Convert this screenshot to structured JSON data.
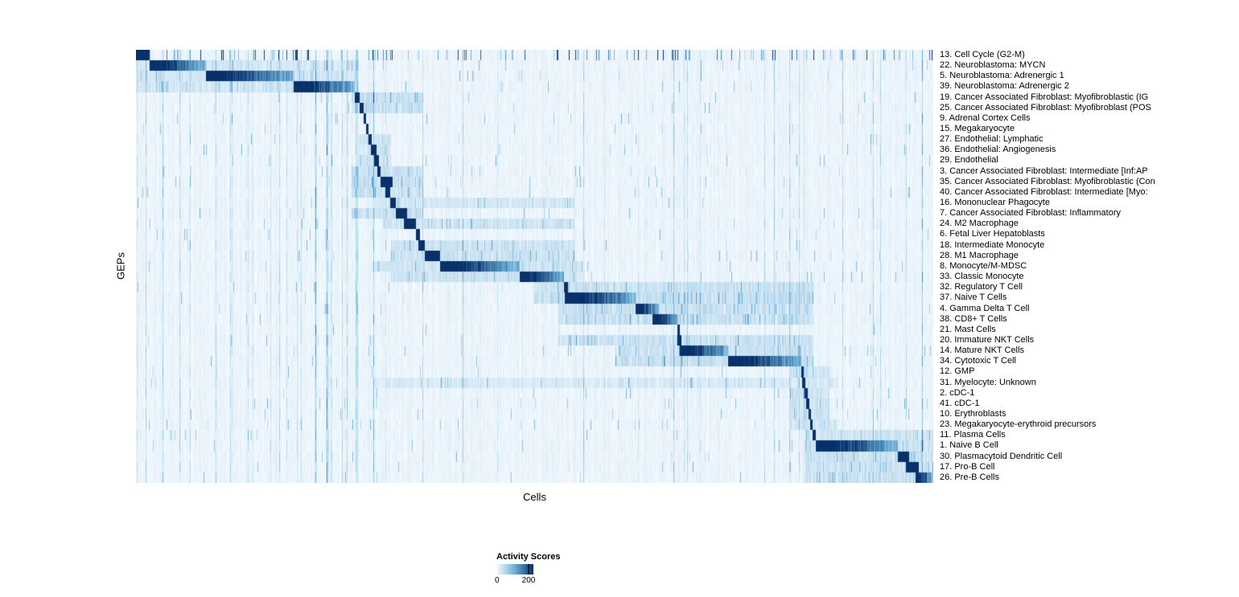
{
  "chart_data": {
    "type": "heatmap",
    "title": "",
    "xlabel": "Cells",
    "ylabel": "GEPs",
    "legend": {
      "title": "Activity Scores",
      "min_label": "0",
      "max_label": "200"
    },
    "colormap": {
      "name": "Blues",
      "min": 0,
      "max": 200,
      "stops": [
        "#f7fbff",
        "#6baed6",
        "#08306b"
      ]
    },
    "layout": {
      "n_rows": 41,
      "grid": false,
      "legend_position": "bottom-left",
      "row_labels_position": "right"
    },
    "rows": [
      {
        "label": "13. Cell Cycle (G2-M)",
        "segment": [
          0.0,
          0.017
        ],
        "haze": null,
        "scatter": true
      },
      {
        "label": "22. Neuroblastoma: MYCN",
        "segment": [
          0.017,
          0.088
        ],
        "haze": [
          0.0,
          0.28,
          0.7
        ]
      },
      {
        "label": "5. Neuroblastoma: Adrenergic 1",
        "segment": [
          0.088,
          0.198
        ],
        "haze": [
          0.0,
          0.28,
          0.7
        ]
      },
      {
        "label": "39. Neuroblastoma: Adrenergic 2",
        "segment": [
          0.198,
          0.274
        ],
        "haze": [
          0.0,
          0.28,
          0.7
        ]
      },
      {
        "label": "19. Cancer Associated Fibroblast: Myofibroblastic (IG",
        "segment": [
          0.274,
          0.281
        ],
        "haze": [
          0.27,
          0.36,
          1.0
        ]
      },
      {
        "label": "25. Cancer Associated Fibroblast: Myofibroblast (POS",
        "segment": [
          0.281,
          0.286
        ],
        "haze": [
          0.27,
          0.36,
          1.0
        ]
      },
      {
        "label": "9. Adrenal Cortex Cells",
        "segment": [
          0.286,
          0.289
        ],
        "haze": null
      },
      {
        "label": "15. Megakaryocyte",
        "segment": [
          0.289,
          0.292
        ],
        "haze": null
      },
      {
        "label": "27. Endothelial: Lymphatic",
        "segment": [
          0.292,
          0.296
        ],
        "haze": [
          0.28,
          0.32,
          0.8
        ]
      },
      {
        "label": "36. Endothelial: Angiogenesis",
        "segment": [
          0.295,
          0.302
        ],
        "haze": [
          0.28,
          0.32,
          0.8
        ]
      },
      {
        "label": "29. Endothelial",
        "segment": [
          0.299,
          0.305
        ],
        "haze": [
          0.28,
          0.32,
          0.8
        ]
      },
      {
        "label": "3. Cancer Associated Fibroblast: Intermediate [Inf:AP",
        "segment": [
          0.303,
          0.307
        ],
        "haze": [
          0.27,
          0.36,
          1.0
        ]
      },
      {
        "label": "35. Cancer Associated Fibroblast: Myofibroblastic (Con",
        "segment": [
          0.307,
          0.322
        ],
        "haze": [
          0.27,
          0.36,
          1.0
        ]
      },
      {
        "label": "40. Cancer Associated Fibroblast: Intermediate [Myo:",
        "segment": [
          0.313,
          0.319
        ],
        "haze": [
          0.27,
          0.36,
          1.0
        ]
      },
      {
        "label": "16. Mononuclear Phagocyte",
        "segment": [
          0.319,
          0.326
        ],
        "haze": [
          0.3,
          0.55,
          0.7
        ]
      },
      {
        "label": "7. Cancer Associated Fibroblast: Inflammatory",
        "segment": [
          0.326,
          0.34
        ],
        "haze": [
          0.27,
          0.36,
          1.0
        ]
      },
      {
        "label": "24. M2 Macrophage",
        "segment": [
          0.336,
          0.351
        ],
        "haze": [
          0.31,
          0.55,
          0.8
        ]
      },
      {
        "label": "6. Fetal Liver Hepatoblasts",
        "segment": [
          0.351,
          0.356
        ],
        "haze": null
      },
      {
        "label": "18. Intermediate Monocyte",
        "segment": [
          0.354,
          0.362
        ],
        "haze": [
          0.32,
          0.55,
          0.9
        ]
      },
      {
        "label": "28. M1 Macrophage",
        "segment": [
          0.362,
          0.381
        ],
        "haze": [
          0.32,
          0.55,
          0.9
        ]
      },
      {
        "label": "8. Monocyte/M-MDSC",
        "segment": [
          0.381,
          0.481
        ],
        "haze": [
          0.3,
          0.56,
          0.8
        ]
      },
      {
        "label": "33. Classic Monocyte",
        "segment": [
          0.481,
          0.537
        ],
        "haze": [
          0.32,
          0.56,
          0.9
        ]
      },
      {
        "label": "32. Regulatory T Cell",
        "segment": [
          0.537,
          0.542
        ],
        "haze": [
          0.5,
          0.85,
          0.9
        ]
      },
      {
        "label": "37. Naive T Cells",
        "segment": [
          0.538,
          0.627
        ],
        "haze": [
          0.5,
          0.85,
          1.1
        ]
      },
      {
        "label": "4. Gamma Delta T Cell",
        "segment": [
          0.627,
          0.655
        ],
        "haze": [
          0.53,
          0.85,
          1.0
        ]
      },
      {
        "label": "38. CD8+ T Cells",
        "segment": [
          0.648,
          0.679
        ],
        "haze": [
          0.53,
          0.85,
          1.0
        ]
      },
      {
        "label": "21. Mast Cells",
        "segment": [
          0.679,
          0.682
        ],
        "haze": null
      },
      {
        "label": "20. Immature NKT Cells",
        "segment": [
          0.679,
          0.684
        ],
        "haze": [
          0.53,
          0.85,
          0.9
        ]
      },
      {
        "label": "14. Mature NKT Cells",
        "segment": [
          0.682,
          0.743
        ],
        "haze": [
          0.6,
          0.85,
          1.0
        ]
      },
      {
        "label": "34. Cytotoxic T Cell",
        "segment": [
          0.743,
          0.835
        ],
        "haze": [
          0.6,
          0.85,
          1.0
        ]
      },
      {
        "label": "12. GMP",
        "segment": [
          0.835,
          0.838
        ],
        "haze": [
          0.82,
          0.87,
          0.8
        ]
      },
      {
        "label": "31. Myelocyte: Unknown",
        "segment": [
          0.836,
          0.84
        ],
        "haze": [
          0.3,
          0.88,
          0.5
        ]
      },
      {
        "label": "2. cDC-1",
        "segment": [
          0.839,
          0.843
        ],
        "haze": [
          0.82,
          0.87,
          0.8
        ]
      },
      {
        "label": "41. cDC-1",
        "segment": [
          0.841,
          0.845
        ],
        "haze": [
          0.82,
          0.87,
          0.8
        ]
      },
      {
        "label": "10. Erythroblasts",
        "segment": [
          0.844,
          0.847
        ],
        "haze": [
          0.82,
          0.87,
          0.8
        ]
      },
      {
        "label": "23. Megakaryocyte-erythroid precursors",
        "segment": [
          0.846,
          0.849
        ],
        "haze": [
          0.82,
          0.88,
          0.8
        ]
      },
      {
        "label": "11. Plasma Cells",
        "segment": [
          0.849,
          0.853
        ],
        "haze": [
          0.84,
          1.0,
          0.8
        ]
      },
      {
        "label": "1. Naive B Cell",
        "segment": [
          0.853,
          0.956
        ],
        "haze": [
          0.84,
          1.0,
          0.9
        ]
      },
      {
        "label": "30. Plasmacytoid Dendritic Cell",
        "segment": [
          0.956,
          0.97
        ],
        "haze": [
          0.84,
          1.0,
          0.9
        ]
      },
      {
        "label": "17. Pro-B Cell",
        "segment": [
          0.966,
          0.982
        ],
        "haze": [
          0.84,
          1.0,
          0.9
        ]
      },
      {
        "label": "26. Pre-B Cells",
        "segment": [
          0.978,
          1.0
        ],
        "haze": [
          0.84,
          1.0,
          0.9
        ]
      }
    ]
  }
}
